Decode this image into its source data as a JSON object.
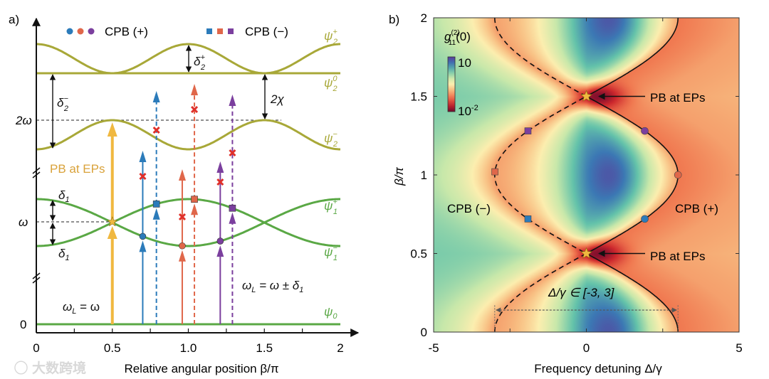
{
  "panel_a": {
    "label": "a)",
    "legend": {
      "plus": "CPB (+)",
      "minus": "CPB (−)"
    },
    "y_ticks": [
      "2ω",
      "ω",
      "0"
    ],
    "x_ticks": [
      "0",
      "0.5",
      "1.0",
      "1.5",
      "2"
    ],
    "x_tick_values": [
      0,
      0.5,
      1.0,
      1.5,
      2
    ],
    "xlabel": "Relative angular position β/π",
    "levels": {
      "psi2p": {
        "base": "ψ",
        "sup": "+",
        "sub": "2"
      },
      "psi20": {
        "base": "ψ",
        "sup": "0",
        "sub": "2"
      },
      "psi2m": {
        "base": "ψ",
        "sup": "−",
        "sub": "2"
      },
      "psi1p": {
        "base": "ψ",
        "sup": "+",
        "sub": "1"
      },
      "psi1m": {
        "base": "ψ",
        "sup": "−",
        "sub": "1"
      },
      "psi0": {
        "base": "ψ",
        "sup": "",
        "sub": "0"
      }
    },
    "annotations": {
      "delta2p": {
        "base": "δ",
        "sup": "+",
        "sub": "2"
      },
      "delta2m": {
        "base": "δ",
        "sup": "−",
        "sub": "2"
      },
      "two_chi": "2χ",
      "delta1": {
        "base": "δ",
        "sub": "1"
      },
      "pb_at_eps": "PB at EPs",
      "omega_l_eq": {
        "lhs": "ω",
        "sub": "L",
        "rhs": " = ω"
      },
      "omega_l_pm": {
        "lhs": "ω",
        "sub": "L",
        "rhs": " = ω ± δ",
        "rsub": "1"
      }
    },
    "pb_beta": 0.5,
    "arrows": [
      {
        "beta": 0.7,
        "color": "#2b7bba",
        "style": "solid",
        "marker": "circle"
      },
      {
        "beta": 0.79,
        "color": "#2b7bba",
        "style": "dashed",
        "marker": "square"
      },
      {
        "beta": 0.96,
        "color": "#e0674a",
        "style": "solid",
        "marker": "circle"
      },
      {
        "beta": 1.04,
        "color": "#e0674a",
        "style": "dashed",
        "marker": "square"
      },
      {
        "beta": 1.21,
        "color": "#7b3f9e",
        "style": "solid",
        "marker": "circle"
      },
      {
        "beta": 1.29,
        "color": "#7b3f9e",
        "style": "dashed",
        "marker": "square"
      }
    ],
    "watermark": "大数跨境"
  },
  "panel_b": {
    "label": "b)",
    "colorbar": {
      "title_base": "g",
      "title_sup": "(2)",
      "title_sub": "11",
      "title_tail": "(0)",
      "max_label": "10",
      "min_base": "10",
      "min_sup": "-2"
    },
    "pb_label": "PB at EPs",
    "cpb_minus": "CPB (−)",
    "cpb_plus": "CPB (+)",
    "range_label": "Δ/γ ∈ [-3, 3]"
  },
  "colors": {
    "blue": "#2b7bba",
    "orange": "#e0674a",
    "purple": "#7b3f9e",
    "gold": "#f0b840",
    "olive": "#a8a838",
    "green": "#5aa845",
    "cross": "#e0302a"
  },
  "chart_data": {
    "type": "heatmap",
    "title": "g11(2)(0)",
    "xlabel": "Frequency detuning Δ/γ",
    "ylabel": "β/π",
    "xlim": [
      -5,
      5
    ],
    "ylim": [
      0,
      2
    ],
    "x_ticks": [
      "-5",
      "0",
      "5"
    ],
    "x_tick_values": [
      -5,
      0,
      5
    ],
    "y_ticks": [
      "0",
      "0.5",
      "1",
      "1.5",
      "2"
    ],
    "y_tick_values": [
      0,
      0.5,
      1,
      1.5,
      2
    ],
    "colorbar_range": [
      0.01,
      10
    ],
    "curves": [
      {
        "name": "CPB (+)",
        "style": "solid",
        "formula": "Δ/γ = 3|cos(πβ)|"
      },
      {
        "name": "CPB (−)",
        "style": "dashed",
        "formula": "Δ/γ = -3|cos(πβ)|"
      }
    ],
    "ep_points": [
      {
        "x": 0,
        "y": 0.5
      },
      {
        "x": 0,
        "y": 1.5
      }
    ],
    "markers": [
      {
        "shape": "circle",
        "color": "#2b7bba",
        "y": 0.72
      },
      {
        "shape": "circle",
        "color": "#e0674a",
        "y": 1.0
      },
      {
        "shape": "circle",
        "color": "#7b3f9e",
        "y": 1.28
      },
      {
        "shape": "square",
        "color": "#2b7bba",
        "y": 0.72
      },
      {
        "shape": "square",
        "color": "#e0674a",
        "y": 1.02
      },
      {
        "shape": "square",
        "color": "#7b3f9e",
        "y": 1.28
      }
    ],
    "range": [
      -3,
      3
    ]
  }
}
